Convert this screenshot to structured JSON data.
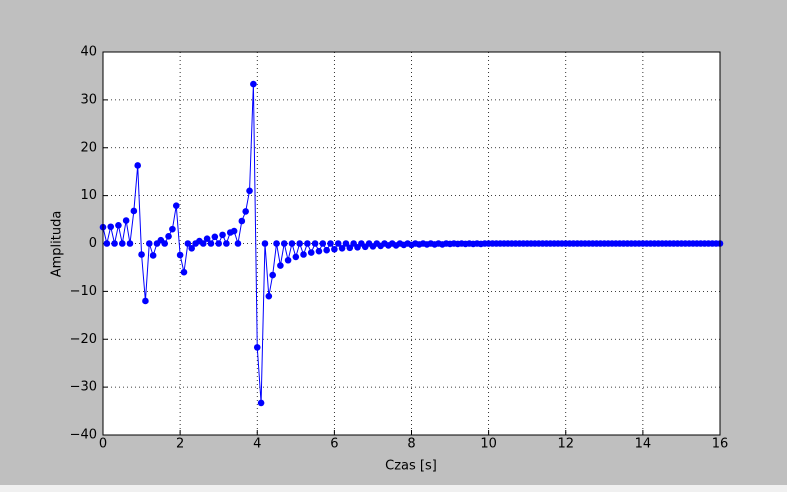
{
  "chart_data": {
    "type": "line",
    "xlabel": "Czas [s]",
    "ylabel": "Amplituda",
    "x": [
      0,
      0.1,
      0.2,
      0.3,
      0.4,
      0.5,
      0.6,
      0.7,
      0.8,
      0.9,
      1,
      1.1,
      1.2,
      1.3,
      1.4,
      1.5,
      1.6,
      1.7,
      1.8,
      1.9,
      2,
      2.1,
      2.2,
      2.3,
      2.4,
      2.5,
      2.6,
      2.7,
      2.8,
      2.9,
      3,
      3.1,
      3.2,
      3.3,
      3.4,
      3.5,
      3.6,
      3.7,
      3.8,
      3.9,
      4,
      4.1,
      4.2,
      4.3,
      4.4,
      4.5,
      4.6,
      4.7,
      4.8,
      4.9,
      5,
      5.1,
      5.2,
      5.3,
      5.4,
      5.5,
      5.6,
      5.7,
      5.8,
      5.9,
      6,
      6.1,
      6.2,
      6.3,
      6.4,
      6.5,
      6.6,
      6.7,
      6.8,
      6.9,
      7,
      7.1,
      7.2,
      7.3,
      7.4,
      7.5,
      7.6,
      7.7,
      7.8,
      7.9,
      8,
      8.1,
      8.2,
      8.3,
      8.4,
      8.5,
      8.6,
      8.7,
      8.8,
      8.9,
      9,
      9.1,
      9.2,
      9.3,
      9.4,
      9.5,
      9.6,
      9.7,
      9.8,
      9.9,
      10,
      10.1,
      10.2,
      10.3,
      10.4,
      10.5,
      10.6,
      10.7,
      10.8,
      10.9,
      11,
      11.1,
      11.2,
      11.3,
      11.4,
      11.5,
      11.6,
      11.7,
      11.8,
      11.9,
      12,
      12.1,
      12.2,
      12.3,
      12.4,
      12.5,
      12.6,
      12.7,
      12.8,
      12.9,
      13,
      13.1,
      13.2,
      13.3,
      13.4,
      13.5,
      13.6,
      13.7,
      13.8,
      13.9,
      14,
      14.1,
      14.2,
      14.3,
      14.4,
      14.5,
      14.6,
      14.7,
      14.8,
      14.9,
      15,
      15.1,
      15.2,
      15.3,
      15.4,
      15.5,
      15.6,
      15.7,
      15.8,
      15.9,
      16
    ],
    "series": [
      {
        "color": "#0000ff",
        "values": [
          3.4,
          0,
          3.5,
          0,
          3.8,
          0,
          4.8,
          0,
          6.8,
          16.3,
          -2.3,
          -12,
          0,
          -2.5,
          0,
          0.7,
          0,
          1.5,
          3.0,
          7.9,
          -2.4,
          -6.0,
          0,
          -1.0,
          0,
          0.5,
          0,
          1.0,
          0,
          1.4,
          0,
          1.8,
          0,
          2.3,
          2.6,
          0,
          4.7,
          6.7,
          11,
          33.3,
          -21.7,
          -33.3,
          0,
          -11,
          -6.6,
          0,
          -4.6,
          0,
          -3.5,
          0,
          -2.8,
          0,
          -2.3,
          0,
          -1.9,
          0,
          -1.6,
          0,
          -1.4,
          0,
          -1.2,
          0,
          -1.0,
          0,
          -0.9,
          0,
          -0.8,
          0,
          -0.7,
          0,
          -0.6,
          0,
          -0.5,
          0,
          -0.4,
          0,
          -0.4,
          0,
          -0.3,
          0,
          -0.3,
          0,
          -0.2,
          0,
          -0.2,
          0,
          -0.2,
          0,
          -0.2,
          0,
          -0.1,
          0,
          -0.1,
          0,
          -0.1,
          0,
          -0.1,
          0,
          -0.1,
          0,
          0,
          0,
          0,
          0,
          0,
          0,
          0,
          0,
          0,
          0,
          0,
          0,
          0,
          0,
          0,
          0,
          0,
          0,
          0,
          0,
          0,
          0,
          0,
          0,
          0,
          0,
          0,
          0,
          0,
          0,
          0,
          0,
          0,
          0,
          0,
          0,
          0,
          0,
          0,
          0,
          0,
          0,
          0,
          0,
          0,
          0,
          0,
          0,
          0,
          0,
          0,
          0,
          0,
          0,
          0,
          0,
          0,
          0,
          0,
          0,
          0
        ]
      }
    ],
    "xlim": [
      0,
      16
    ],
    "xticks": [
      0,
      2,
      4,
      6,
      8,
      10,
      12,
      14,
      16
    ],
    "ylim": [
      -40,
      40
    ],
    "yticks": [
      {
        "value": -40,
        "label": "−40"
      },
      {
        "value": -30,
        "label": "−30"
      },
      {
        "value": -20,
        "label": "−20"
      },
      {
        "value": -10,
        "label": "−10"
      },
      0,
      10,
      20,
      30,
      40
    ],
    "grid": true
  }
}
